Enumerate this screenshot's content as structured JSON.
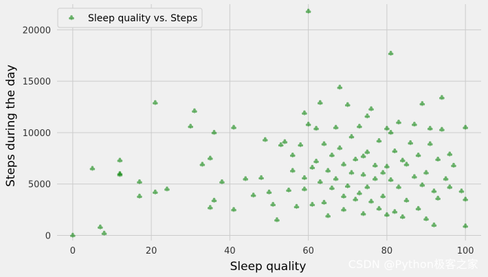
{
  "chart_data": {
    "type": "scatter",
    "xlabel": "Sleep quality",
    "ylabel": "Steps during the day",
    "xlim": [
      -4,
      104
    ],
    "ylim": [
      -500,
      22500
    ],
    "xticks": [
      0,
      20,
      40,
      60,
      80,
      100
    ],
    "yticks": [
      0,
      5000,
      10000,
      15000,
      20000
    ],
    "grid": true,
    "legend_position": "top-left",
    "series": [
      {
        "name": "Sleep quality vs. Steps",
        "color": "#008000",
        "marker": "club",
        "x": [
          0,
          5,
          7,
          8,
          12,
          12,
          12,
          17,
          17,
          21,
          21,
          24,
          30,
          31,
          33,
          35,
          35,
          36,
          36,
          38,
          41,
          41,
          44,
          46,
          48,
          49,
          50,
          51,
          52,
          53,
          54,
          55,
          56,
          56,
          57,
          58,
          59,
          59,
          59,
          60,
          60,
          61,
          61,
          62,
          62,
          63,
          63,
          64,
          64,
          65,
          65,
          66,
          66,
          67,
          67,
          68,
          68,
          69,
          69,
          69,
          70,
          70,
          71,
          71,
          72,
          72,
          73,
          73,
          74,
          74,
          74,
          75,
          75,
          75,
          76,
          76,
          77,
          77,
          78,
          78,
          79,
          79,
          80,
          80,
          80,
          81,
          81,
          81,
          82,
          82,
          83,
          83,
          84,
          84,
          85,
          85,
          86,
          87,
          87,
          88,
          88,
          89,
          89,
          90,
          90,
          91,
          91,
          92,
          92,
          93,
          93,
          94,
          94,
          95,
          96,
          96,
          97,
          99,
          100,
          100,
          100
        ],
        "y": [
          0,
          6500,
          800,
          200,
          5900,
          6000,
          7300,
          3800,
          5200,
          4200,
          12900,
          4500,
          10600,
          12100,
          6900,
          2700,
          7500,
          3400,
          10000,
          5200,
          2500,
          10500,
          5500,
          3900,
          5600,
          9300,
          4200,
          3000,
          1500,
          8800,
          9100,
          4400,
          6300,
          7800,
          2800,
          8800,
          11900,
          5600,
          4500,
          10800,
          21800,
          6600,
          3000,
          10400,
          7200,
          12900,
          5200,
          8900,
          3200,
          1900,
          6300,
          4600,
          7800,
          10500,
          5500,
          8500,
          14400,
          3800,
          6900,
          2500,
          12700,
          4800,
          9600,
          6100,
          7400,
          3500,
          10600,
          4100,
          5900,
          7700,
          2100,
          11600,
          8100,
          4700,
          12300,
          3300,
          6800,
          5500,
          2600,
          9200,
          6100,
          3800,
          10400,
          6700,
          2000,
          10000,
          17700,
          5400,
          2300,
          8200,
          4700,
          11000,
          7300,
          1800,
          6900,
          3400,
          9000,
          10800,
          5700,
          2600,
          7800,
          12800,
          4900,
          6100,
          1600,
          8900,
          10400,
          4300,
          1000,
          7400,
          3600,
          10300,
          13400,
          5500,
          4700,
          7900,
          6800,
          4300,
          10500,
          3500,
          900
        ]
      }
    ]
  },
  "watermark": "CSDN @Python极客之家"
}
